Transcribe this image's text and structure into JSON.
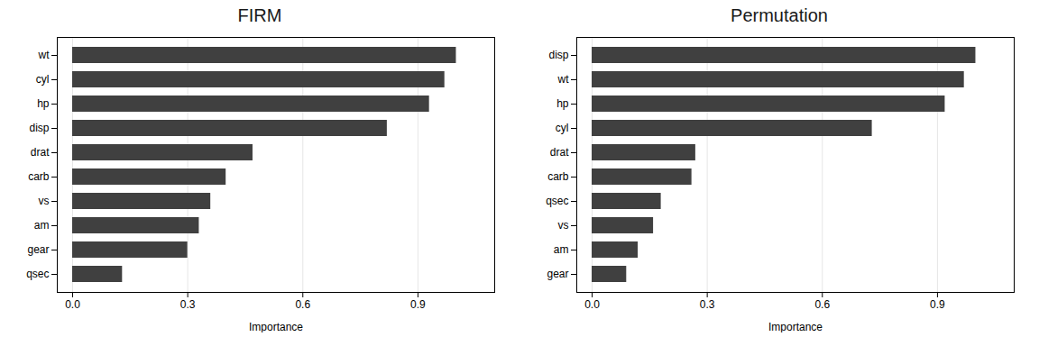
{
  "chart_data": [
    {
      "type": "bar",
      "orientation": "horizontal",
      "title": "FIRM",
      "categories": [
        "qsec",
        "gear",
        "am",
        "vs",
        "carb",
        "drat",
        "disp",
        "hp",
        "cyl",
        "wt"
      ],
      "values": [
        0.13,
        0.3,
        0.33,
        0.36,
        0.4,
        0.47,
        0.82,
        0.93,
        0.97,
        1.0
      ],
      "xlabel": "Importance",
      "color": "#404040",
      "xlim": [
        -0.04,
        1.1
      ],
      "xticks": [
        {
          "value": 0.0,
          "label": "0.0"
        },
        0.3,
        0.6,
        0.9
      ],
      "grid": true
    },
    {
      "type": "bar",
      "orientation": "horizontal",
      "title": "Permutation",
      "categories": [
        "gear",
        "am",
        "vs",
        "qsec",
        "carb",
        "drat",
        "cyl",
        "hp",
        "wt",
        "disp"
      ],
      "values": [
        0.09,
        0.12,
        0.16,
        0.18,
        0.26,
        0.27,
        0.73,
        0.92,
        0.97,
        1.0
      ],
      "xlabel": "Importance",
      "color": "#404040",
      "xlim": [
        -0.04,
        1.1
      ],
      "xticks": [
        {
          "value": 0.0,
          "label": "0.0"
        },
        0.3,
        0.6,
        0.9
      ],
      "grid": true
    }
  ]
}
